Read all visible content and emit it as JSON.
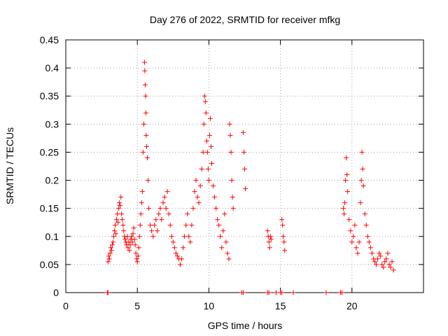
{
  "chart_data": {
    "type": "scatter",
    "title": "Day 276 of 2022, SRMTID for receiver mfkg",
    "xlabel": "GPS time / hours",
    "ylabel": "SRMTID / TECUs",
    "xlim": [
      0,
      25
    ],
    "ylim": [
      0,
      0.45
    ],
    "xticks": [
      0,
      5,
      10,
      15,
      20
    ],
    "xtick_labels": [
      "0",
      "5",
      "10",
      "15",
      "20"
    ],
    "yticks": [
      0,
      0.05,
      0.1,
      0.15,
      0.2,
      0.25,
      0.3,
      0.35,
      0.4,
      0.45
    ],
    "ytick_labels": [
      "0",
      "0.05",
      "0.1",
      "0.15",
      "0.2",
      "0.25",
      "0.3",
      "0.35",
      "0.4",
      "0.45"
    ],
    "grid": true,
    "marker": "+",
    "series": [
      {
        "name": "SRMTID",
        "color": "#ff0000",
        "points": [
          [
            2.95,
            0.055
          ],
          [
            3.0,
            0.065
          ],
          [
            3.05,
            0.06
          ],
          [
            3.1,
            0.07
          ],
          [
            3.15,
            0.08
          ],
          [
            3.2,
            0.075
          ],
          [
            3.25,
            0.085
          ],
          [
            3.3,
            0.09
          ],
          [
            3.35,
            0.1
          ],
          [
            3.4,
            0.11
          ],
          [
            3.45,
            0.12
          ],
          [
            3.5,
            0.105
          ],
          [
            3.55,
            0.13
          ],
          [
            3.6,
            0.14
          ],
          [
            3.65,
            0.125
          ],
          [
            3.7,
            0.15
          ],
          [
            3.75,
            0.16
          ],
          [
            3.8,
            0.155
          ],
          [
            3.85,
            0.17
          ],
          [
            3.9,
            0.14
          ],
          [
            3.95,
            0.13
          ],
          [
            4.0,
            0.12
          ],
          [
            4.05,
            0.11
          ],
          [
            4.1,
            0.1
          ],
          [
            4.15,
            0.095
          ],
          [
            4.2,
            0.09
          ],
          [
            4.25,
            0.085
          ],
          [
            4.3,
            0.1
          ],
          [
            4.35,
            0.08
          ],
          [
            4.4,
            0.09
          ],
          [
            4.45,
            0.075
          ],
          [
            4.5,
            0.085
          ],
          [
            4.55,
            0.095
          ],
          [
            4.6,
            0.1
          ],
          [
            4.65,
            0.09
          ],
          [
            4.7,
            0.105
          ],
          [
            4.75,
            0.115
          ],
          [
            4.8,
            0.095
          ],
          [
            4.85,
            0.085
          ],
          [
            4.9,
            0.07
          ],
          [
            4.95,
            0.06
          ],
          [
            5.0,
            0.055
          ],
          [
            5.05,
            0.065
          ],
          [
            5.1,
            0.08
          ],
          [
            5.15,
            0.1
          ],
          [
            5.2,
            0.12
          ],
          [
            5.25,
            0.14
          ],
          [
            5.3,
            0.16
          ],
          [
            5.35,
            0.18
          ],
          [
            5.4,
            0.25
          ],
          [
            5.45,
            0.3
          ],
          [
            5.5,
            0.41
          ],
          [
            5.52,
            0.395
          ],
          [
            5.55,
            0.37
          ],
          [
            5.58,
            0.35
          ],
          [
            5.6,
            0.32
          ],
          [
            5.62,
            0.28
          ],
          [
            5.65,
            0.26
          ],
          [
            5.7,
            0.24
          ],
          [
            5.75,
            0.2
          ],
          [
            5.8,
            0.15
          ],
          [
            5.9,
            0.12
          ],
          [
            6.0,
            0.11
          ],
          [
            6.1,
            0.1
          ],
          [
            6.2,
            0.12
          ],
          [
            6.3,
            0.13
          ],
          [
            6.4,
            0.11
          ],
          [
            6.5,
            0.14
          ],
          [
            6.6,
            0.15
          ],
          [
            6.7,
            0.13
          ],
          [
            6.8,
            0.16
          ],
          [
            6.9,
            0.17
          ],
          [
            7.0,
            0.15
          ],
          [
            7.1,
            0.18
          ],
          [
            7.2,
            0.14
          ],
          [
            7.3,
            0.12
          ],
          [
            7.4,
            0.1
          ],
          [
            7.5,
            0.09
          ],
          [
            7.6,
            0.08
          ],
          [
            7.7,
            0.07
          ],
          [
            7.8,
            0.065
          ],
          [
            7.9,
            0.06
          ],
          [
            8.0,
            0.05
          ],
          [
            8.1,
            0.06
          ],
          [
            8.2,
            0.08
          ],
          [
            8.3,
            0.1
          ],
          [
            8.4,
            0.12
          ],
          [
            8.5,
            0.14
          ],
          [
            8.6,
            0.1
          ],
          [
            8.7,
            0.09
          ],
          [
            8.8,
            0.12
          ],
          [
            8.9,
            0.15
          ],
          [
            9.0,
            0.18
          ],
          [
            9.1,
            0.2
          ],
          [
            9.2,
            0.17
          ],
          [
            9.3,
            0.16
          ],
          [
            9.4,
            0.19
          ],
          [
            9.5,
            0.22
          ],
          [
            9.6,
            0.25
          ],
          [
            9.65,
            0.3
          ],
          [
            9.7,
            0.35
          ],
          [
            9.75,
            0.34
          ],
          [
            9.8,
            0.32
          ],
          [
            9.85,
            0.27
          ],
          [
            9.9,
            0.25
          ],
          [
            9.95,
            0.22
          ],
          [
            10.0,
            0.2
          ],
          [
            10.05,
            0.28
          ],
          [
            10.1,
            0.31
          ],
          [
            10.15,
            0.26
          ],
          [
            10.2,
            0.23
          ],
          [
            10.3,
            0.19
          ],
          [
            10.4,
            0.17
          ],
          [
            10.5,
            0.15
          ],
          [
            10.6,
            0.13
          ],
          [
            10.7,
            0.12
          ],
          [
            10.8,
            0.1
          ],
          [
            10.9,
            0.08
          ],
          [
            11.0,
            0.11
          ],
          [
            11.1,
            0.14
          ],
          [
            11.2,
            0.09
          ],
          [
            11.3,
            0.07
          ],
          [
            11.4,
            0.06
          ],
          [
            11.45,
            0.3
          ],
          [
            11.5,
            0.28
          ],
          [
            11.55,
            0.25
          ],
          [
            11.6,
            0.2
          ],
          [
            11.65,
            0.17
          ],
          [
            11.7,
            0.15
          ],
          [
            12.4,
            0.285
          ],
          [
            12.45,
            0.25
          ],
          [
            12.5,
            0.22
          ],
          [
            12.55,
            0.185
          ],
          [
            14.1,
            0.11
          ],
          [
            14.15,
            0.1
          ],
          [
            14.2,
            0.09
          ],
          [
            14.25,
            0.08
          ],
          [
            14.3,
            0.1
          ],
          [
            14.35,
            0.095
          ],
          [
            15.1,
            0.13
          ],
          [
            15.15,
            0.12
          ],
          [
            15.2,
            0.1
          ],
          [
            15.25,
            0.09
          ],
          [
            15.3,
            0.075
          ],
          [
            19.4,
            0.15
          ],
          [
            19.45,
            0.14
          ],
          [
            19.5,
            0.16
          ],
          [
            19.55,
            0.2
          ],
          [
            19.6,
            0.24
          ],
          [
            19.65,
            0.21
          ],
          [
            19.7,
            0.18
          ],
          [
            19.8,
            0.13
          ],
          [
            19.9,
            0.11
          ],
          [
            20.0,
            0.09
          ],
          [
            20.1,
            0.1
          ],
          [
            20.2,
            0.12
          ],
          [
            20.3,
            0.08
          ],
          [
            20.4,
            0.07
          ],
          [
            20.5,
            0.09
          ],
          [
            20.6,
            0.16
          ],
          [
            20.65,
            0.2
          ],
          [
            20.7,
            0.25
          ],
          [
            20.75,
            0.22
          ],
          [
            20.8,
            0.19
          ],
          [
            20.9,
            0.14
          ],
          [
            21.0,
            0.12
          ],
          [
            21.1,
            0.1
          ],
          [
            21.2,
            0.09
          ],
          [
            21.3,
            0.08
          ],
          [
            21.4,
            0.07
          ],
          [
            21.5,
            0.06
          ],
          [
            21.6,
            0.055
          ],
          [
            21.7,
            0.05
          ],
          [
            21.8,
            0.06
          ],
          [
            21.9,
            0.07
          ],
          [
            22.0,
            0.065
          ],
          [
            22.1,
            0.05
          ],
          [
            22.2,
            0.045
          ],
          [
            22.3,
            0.055
          ],
          [
            22.4,
            0.06
          ],
          [
            22.5,
            0.07
          ],
          [
            22.6,
            0.05
          ],
          [
            22.7,
            0.045
          ],
          [
            22.8,
            0.055
          ],
          [
            22.9,
            0.04
          ],
          [
            2.9,
            0.0
          ],
          [
            2.95,
            0.0
          ],
          [
            12.3,
            0.0
          ],
          [
            12.4,
            0.0
          ],
          [
            14.1,
            0.0
          ],
          [
            14.2,
            0.0
          ],
          [
            14.7,
            0.0
          ],
          [
            15.0,
            0.0
          ],
          [
            15.1,
            0.0
          ],
          [
            15.9,
            0.0
          ],
          [
            18.2,
            0.0
          ],
          [
            19.2,
            0.0
          ],
          [
            19.3,
            0.0
          ]
        ]
      }
    ]
  }
}
